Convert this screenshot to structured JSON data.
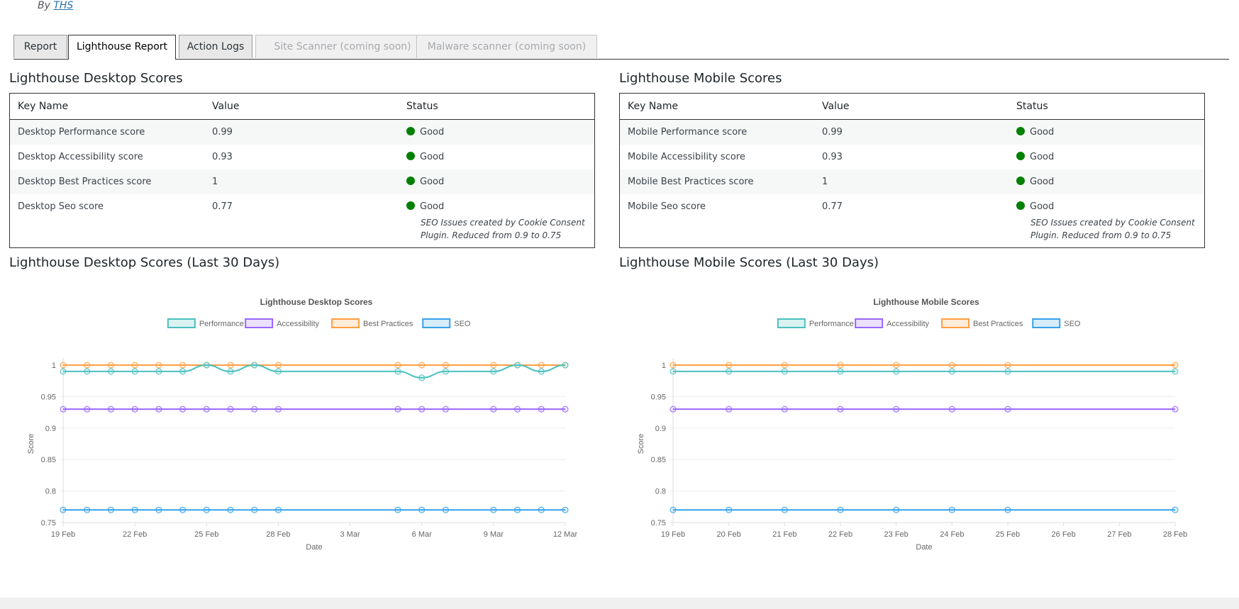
{
  "byline": {
    "prefix": "By",
    "author": "THS"
  },
  "tabs": [
    {
      "label": "Report",
      "state": "normal"
    },
    {
      "label": "Lighthouse Report",
      "state": "active"
    },
    {
      "label": "Action Logs",
      "state": "normal"
    },
    {
      "label": "Site Scanner (coming soon)",
      "state": "disabled"
    },
    {
      "label": "Malware scanner (coming soon)",
      "state": "disabled"
    }
  ],
  "desktop": {
    "title": "Lighthouse Desktop Scores",
    "headers": [
      "Key Name",
      "Value",
      "Status"
    ],
    "rows": [
      {
        "key": "Desktop Performance score",
        "value": "0.99",
        "status": "Good",
        "note": ""
      },
      {
        "key": "Desktop Accessibility score",
        "value": "0.93",
        "status": "Good",
        "note": ""
      },
      {
        "key": "Desktop Best Practices score",
        "value": "1",
        "status": "Good",
        "note": ""
      },
      {
        "key": "Desktop Seo score",
        "value": "0.77",
        "status": "Good",
        "note": "SEO Issues created by Cookie Consent Plugin. Reduced from 0.9 to 0.75"
      }
    ],
    "history_title": "Lighthouse Desktop Scores (Last 30 Days)"
  },
  "mobile": {
    "title": "Lighthouse Mobile Scores",
    "headers": [
      "Key Name",
      "Value",
      "Status"
    ],
    "rows": [
      {
        "key": "Mobile Performance score",
        "value": "0.99",
        "status": "Good",
        "note": ""
      },
      {
        "key": "Mobile Accessibility score",
        "value": "0.93",
        "status": "Good",
        "note": ""
      },
      {
        "key": "Mobile Best Practices score",
        "value": "1",
        "status": "Good",
        "note": ""
      },
      {
        "key": "Mobile Seo score",
        "value": "0.77",
        "status": "Good",
        "note": "SEO Issues created by Cookie Consent Plugin. Reduced from 0.9 to 0.75"
      }
    ],
    "history_title": "Lighthouse Mobile Scores (Last 30 Days)"
  },
  "colors": {
    "good": "#008000",
    "performance": "#4bc0c0",
    "accessibility": "#9966ff",
    "best_practices": "#ff9f40",
    "seo": "#36a2eb"
  },
  "chart_data": [
    {
      "type": "line",
      "title": "Lighthouse Desktop Scores",
      "xlabel": "Date",
      "ylabel": "Score",
      "ylim": [
        0.75,
        1.0
      ],
      "yticks": [
        0.75,
        0.8,
        0.85,
        0.9,
        0.95,
        1
      ],
      "xlim": [
        0,
        21
      ],
      "xticks": [
        {
          "x": 0,
          "label": "19 Feb"
        },
        {
          "x": 3,
          "label": "22 Feb"
        },
        {
          "x": 6,
          "label": "25 Feb"
        },
        {
          "x": 9,
          "label": "28 Feb"
        },
        {
          "x": 12,
          "label": "3 Mar"
        },
        {
          "x": 15,
          "label": "6 Mar"
        },
        {
          "x": 18,
          "label": "9 Mar"
        },
        {
          "x": 21,
          "label": "12 Mar"
        }
      ],
      "x": [
        0,
        1,
        2,
        3,
        4,
        5,
        6,
        7,
        8,
        9,
        14,
        15,
        16,
        18,
        19,
        20,
        21
      ],
      "series": [
        {
          "name": "Performance",
          "color_key": "performance",
          "values": [
            0.99,
            0.99,
            0.99,
            0.99,
            0.99,
            0.99,
            1,
            0.99,
            1,
            0.99,
            0.99,
            0.98,
            0.99,
            0.99,
            1,
            0.99,
            1
          ]
        },
        {
          "name": "Accessibility",
          "color_key": "accessibility",
          "values": [
            0.93,
            0.93,
            0.93,
            0.93,
            0.93,
            0.93,
            0.93,
            0.93,
            0.93,
            0.93,
            0.93,
            0.93,
            0.93,
            0.93,
            0.93,
            0.93,
            0.93
          ]
        },
        {
          "name": "Best Practices",
          "color_key": "best_practices",
          "values": [
            1,
            1,
            1,
            1,
            1,
            1,
            1,
            1,
            1,
            1,
            1,
            1,
            1,
            1,
            1,
            1,
            1
          ]
        },
        {
          "name": "SEO",
          "color_key": "seo",
          "values": [
            0.77,
            0.77,
            0.77,
            0.77,
            0.77,
            0.77,
            0.77,
            0.77,
            0.77,
            0.77,
            0.77,
            0.77,
            0.77,
            0.77,
            0.77,
            0.77,
            0.77
          ]
        }
      ]
    },
    {
      "type": "line",
      "title": "Lighthouse Mobile Scores",
      "xlabel": "Date",
      "ylabel": "Score",
      "ylim": [
        0.75,
        1.0
      ],
      "yticks": [
        0.75,
        0.8,
        0.85,
        0.9,
        0.95,
        1
      ],
      "xlim": [
        0,
        9
      ],
      "xticks": [
        {
          "x": 0,
          "label": "19 Feb"
        },
        {
          "x": 1,
          "label": "20 Feb"
        },
        {
          "x": 2,
          "label": "21 Feb"
        },
        {
          "x": 3,
          "label": "22 Feb"
        },
        {
          "x": 4,
          "label": "23 Feb"
        },
        {
          "x": 5,
          "label": "24 Feb"
        },
        {
          "x": 6,
          "label": "25 Feb"
        },
        {
          "x": 7,
          "label": "26 Feb"
        },
        {
          "x": 8,
          "label": "27 Feb"
        },
        {
          "x": 9,
          "label": "28 Feb"
        }
      ],
      "x": [
        0,
        1,
        2,
        3,
        4,
        5,
        6,
        9
      ],
      "series": [
        {
          "name": "Performance",
          "color_key": "performance",
          "values": [
            0.99,
            0.99,
            0.99,
            0.99,
            0.99,
            0.99,
            0.99,
            0.99
          ]
        },
        {
          "name": "Accessibility",
          "color_key": "accessibility",
          "values": [
            0.93,
            0.93,
            0.93,
            0.93,
            0.93,
            0.93,
            0.93,
            0.93
          ]
        },
        {
          "name": "Best Practices",
          "color_key": "best_practices",
          "values": [
            1,
            1,
            1,
            1,
            1,
            1,
            1,
            1
          ]
        },
        {
          "name": "SEO",
          "color_key": "seo",
          "values": [
            0.77,
            0.77,
            0.77,
            0.77,
            0.77,
            0.77,
            0.77,
            0.77
          ]
        }
      ]
    }
  ]
}
